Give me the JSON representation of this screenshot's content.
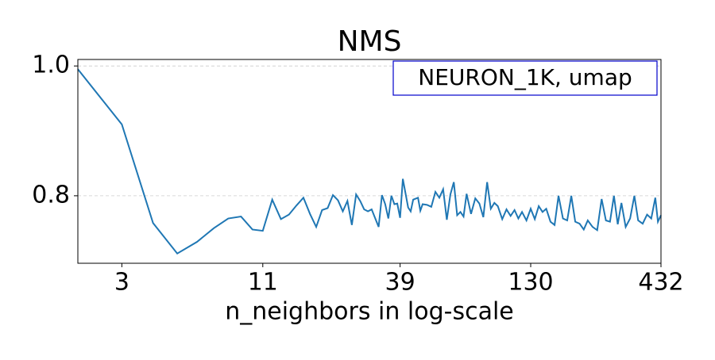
{
  "chart_data": {
    "type": "line",
    "title": "NMS",
    "xlabel": "n_neighbors in log-scale",
    "annotation": "NEURON_1K, umap",
    "xscale": "log",
    "color": "#1f77b4",
    "grid": true,
    "x": [
      2,
      3,
      4,
      5,
      6,
      7,
      8,
      9,
      10,
      11,
      12,
      13,
      14,
      15,
      16,
      17,
      18,
      19,
      20,
      21,
      22,
      23,
      24,
      25,
      26,
      27,
      28,
      29,
      30,
      32,
      33,
      34,
      35,
      36,
      37,
      38,
      39,
      40,
      42,
      43,
      44,
      46,
      47,
      48,
      50,
      52,
      54,
      56,
      58,
      60,
      62,
      64,
      66,
      68,
      70,
      72,
      75,
      78,
      81,
      84,
      87,
      90,
      93,
      96,
      100,
      104,
      108,
      112,
      116,
      120,
      125,
      130,
      135,
      140,
      145,
      150,
      156,
      162,
      168,
      175,
      182,
      189,
      196,
      204,
      212,
      220,
      230,
      240,
      250,
      260,
      270,
      280,
      290,
      300,
      312,
      325,
      338,
      350,
      365,
      380,
      395,
      410,
      420,
      432
    ],
    "values": [
      0.995,
      0.91,
      0.758,
      0.711,
      0.729,
      0.75,
      0.765,
      0.768,
      0.748,
      0.746,
      0.794,
      0.764,
      0.771,
      0.785,
      0.797,
      0.772,
      0.752,
      0.778,
      0.781,
      0.801,
      0.793,
      0.776,
      0.792,
      0.755,
      0.802,
      0.792,
      0.779,
      0.776,
      0.779,
      0.752,
      0.801,
      0.787,
      0.765,
      0.8,
      0.787,
      0.788,
      0.766,
      0.826,
      0.782,
      0.776,
      0.794,
      0.797,
      0.777,
      0.787,
      0.786,
      0.783,
      0.806,
      0.797,
      0.81,
      0.763,
      0.802,
      0.821,
      0.77,
      0.775,
      0.768,
      0.803,
      0.772,
      0.796,
      0.788,
      0.767,
      0.821,
      0.78,
      0.789,
      0.784,
      0.764,
      0.779,
      0.769,
      0.778,
      0.765,
      0.775,
      0.762,
      0.78,
      0.764,
      0.784,
      0.775,
      0.78,
      0.76,
      0.755,
      0.8,
      0.765,
      0.762,
      0.8,
      0.76,
      0.757,
      0.748,
      0.762,
      0.752,
      0.747,
      0.795,
      0.762,
      0.76,
      0.8,
      0.756,
      0.789,
      0.752,
      0.765,
      0.8,
      0.762,
      0.757,
      0.771,
      0.765,
      0.797,
      0.76,
      0.77
    ],
    "xlim": [
      2,
      432
    ],
    "ylim": [
      0.696,
      1.01
    ],
    "xticks": [
      3,
      11,
      39,
      130,
      432
    ],
    "yticks": [
      0.8,
      {
        "value": 1,
        "label": "1.0"
      }
    ]
  }
}
